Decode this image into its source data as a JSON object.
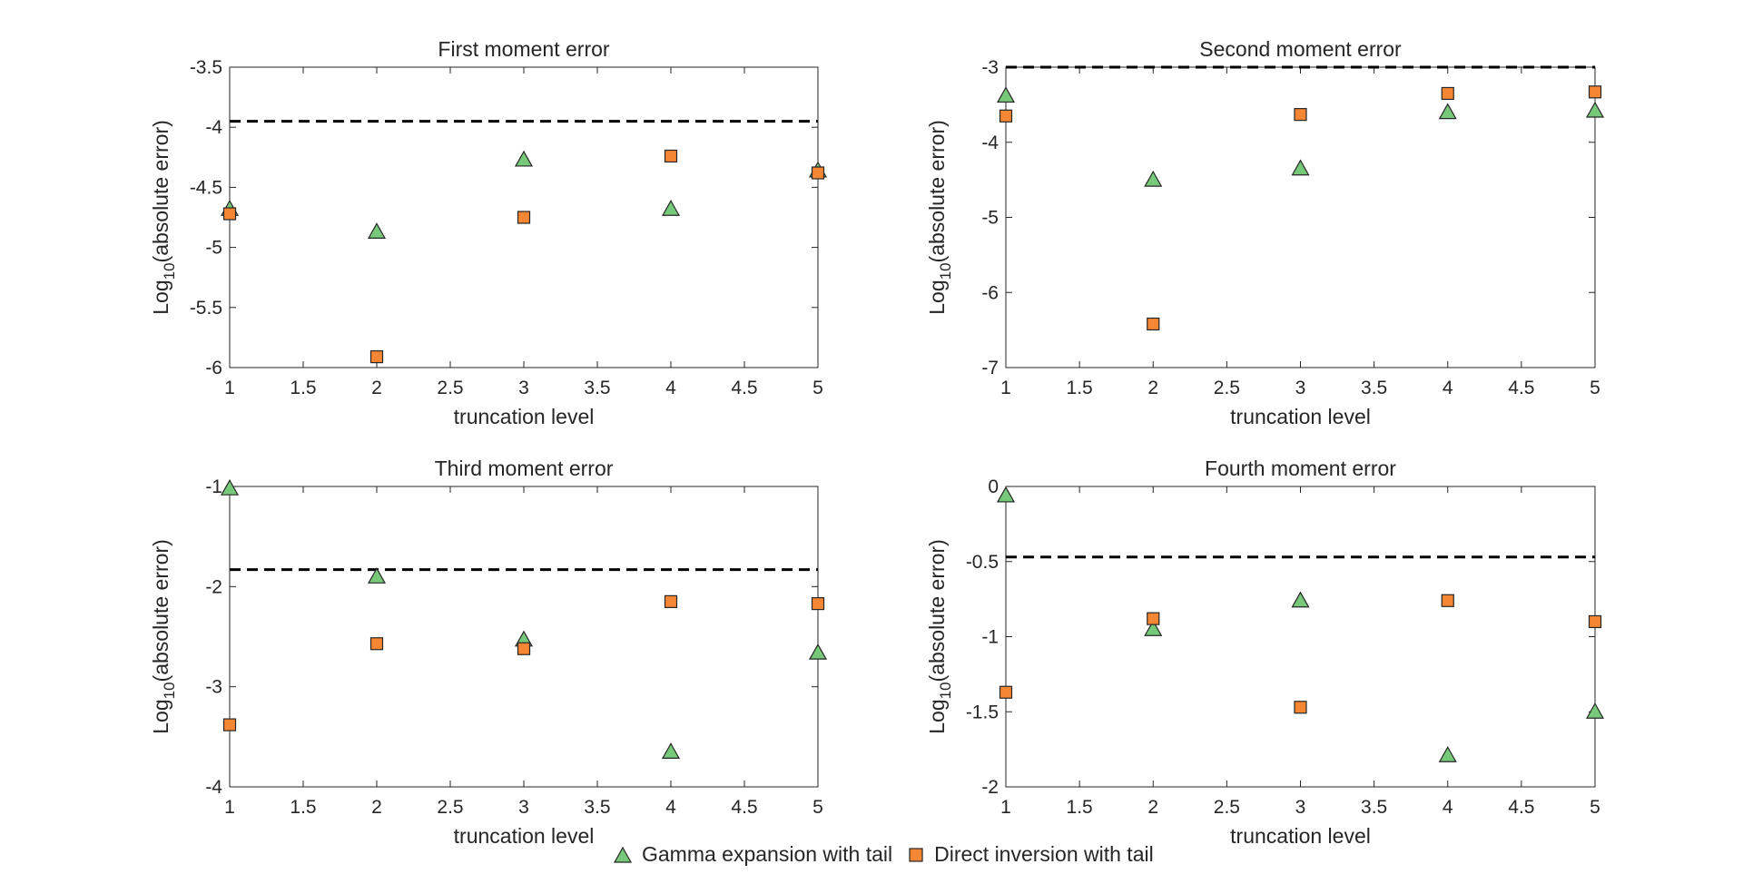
{
  "figure": {
    "legend": {
      "series1": "Gamma expansion with tail",
      "series2": "Direct inversion with tail"
    },
    "colors": {
      "gamma": "#77c97a",
      "direct": "#f58634",
      "edge": "#262626",
      "dashed": "#000000"
    }
  },
  "chart_data": [
    {
      "type": "scatter",
      "title": "First moment error",
      "xlabel": "truncation level",
      "ylabel_base": "Log",
      "ylabel_sub": "10",
      "ylabel_rest": "(absolute error)",
      "xlim": [
        1,
        5
      ],
      "ylim": [
        -6,
        -3.5
      ],
      "xticks": [
        1,
        1.5,
        2,
        2.5,
        3,
        3.5,
        4,
        4.5,
        5
      ],
      "xtick_labels": [
        "1",
        "1.5",
        "2",
        "2.5",
        "3",
        "3.5",
        "4",
        "4.5",
        "5"
      ],
      "yticks": [
        -6,
        -5.5,
        -5,
        -4.5,
        -4,
        -3.5
      ],
      "ytick_labels": [
        "-6",
        "-5.5",
        "-5",
        "-4.5",
        "-4",
        "-3.5"
      ],
      "reference_line": -3.95,
      "x": [
        1,
        2,
        3,
        4,
        5
      ],
      "series": [
        {
          "name": "Gamma expansion with tail",
          "values": [
            -4.68,
            -4.87,
            -4.27,
            -4.68,
            -4.36
          ]
        },
        {
          "name": "Direct inversion with tail",
          "values": [
            -4.72,
            -5.91,
            -4.75,
            -4.24,
            -4.38
          ]
        }
      ]
    },
    {
      "type": "scatter",
      "title": "Second moment error",
      "xlabel": "truncation level",
      "ylabel_base": "Log",
      "ylabel_sub": "10",
      "ylabel_rest": "(absolute error)",
      "xlim": [
        1,
        5
      ],
      "ylim": [
        -7,
        -3
      ],
      "xticks": [
        1,
        1.5,
        2,
        2.5,
        3,
        3.5,
        4,
        4.5,
        5
      ],
      "xtick_labels": [
        "1",
        "1.5",
        "2",
        "2.5",
        "3",
        "3.5",
        "4",
        "4.5",
        "5"
      ],
      "yticks": [
        -7,
        -6,
        -5,
        -4,
        -3
      ],
      "ytick_labels": [
        "-7",
        "-6",
        "-5",
        "-4",
        "-3"
      ],
      "reference_line": -3.0,
      "x": [
        1,
        2,
        3,
        4,
        5
      ],
      "series": [
        {
          "name": "Gamma expansion with tail",
          "values": [
            -3.38,
            -4.5,
            -4.35,
            -3.6,
            -3.58
          ]
        },
        {
          "name": "Direct inversion with tail",
          "values": [
            -3.65,
            -6.42,
            -3.63,
            -3.35,
            -3.33
          ]
        }
      ]
    },
    {
      "type": "scatter",
      "title": "Third moment error",
      "xlabel": "truncation level",
      "ylabel_base": "Log",
      "ylabel_sub": "10",
      "ylabel_rest": "(absolute error)",
      "xlim": [
        1,
        5
      ],
      "ylim": [
        -4,
        -1
      ],
      "xticks": [
        1,
        1.5,
        2,
        2.5,
        3,
        3.5,
        4,
        4.5,
        5
      ],
      "xtick_labels": [
        "1",
        "1.5",
        "2",
        "2.5",
        "3",
        "3.5",
        "4",
        "4.5",
        "5"
      ],
      "yticks": [
        -4,
        -3,
        -2,
        -1
      ],
      "ytick_labels": [
        "-4",
        "-3",
        "-2",
        "-1"
      ],
      "reference_line": -1.83,
      "x": [
        1,
        2,
        3,
        4,
        5
      ],
      "series": [
        {
          "name": "Gamma expansion with tail",
          "values": [
            -1.02,
            -1.9,
            -2.53,
            -3.65,
            -2.66
          ]
        },
        {
          "name": "Direct inversion with tail",
          "values": [
            -3.38,
            -2.57,
            -2.62,
            -2.15,
            -2.17
          ]
        }
      ]
    },
    {
      "type": "scatter",
      "title": "Fourth moment error",
      "xlabel": "truncation level",
      "ylabel_base": "Log",
      "ylabel_sub": "10",
      "ylabel_rest": "(absolute error)",
      "xlim": [
        1,
        5
      ],
      "ylim": [
        -2,
        0
      ],
      "xticks": [
        1,
        1.5,
        2,
        2.5,
        3,
        3.5,
        4,
        4.5,
        5
      ],
      "xtick_labels": [
        "1",
        "1.5",
        "2",
        "2.5",
        "3",
        "3.5",
        "4",
        "4.5",
        "5"
      ],
      "yticks": [
        -2,
        -1.5,
        -1,
        -0.5,
        0
      ],
      "ytick_labels": [
        "-2",
        "-1.5",
        "-1",
        "-0.5",
        "0"
      ],
      "reference_line": -0.47,
      "x": [
        1,
        2,
        3,
        4,
        5
      ],
      "series": [
        {
          "name": "Gamma expansion with tail",
          "values": [
            -0.06,
            -0.95,
            -0.76,
            -1.79,
            -1.5
          ]
        },
        {
          "name": "Direct inversion with tail",
          "values": [
            -1.37,
            -0.88,
            -1.47,
            -0.76,
            -0.9
          ]
        }
      ]
    }
  ]
}
